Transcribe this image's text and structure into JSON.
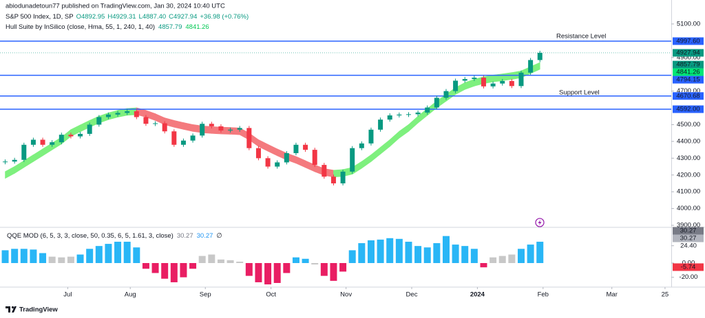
{
  "header": {
    "publisher": "abiodunadetoun77 published on TradingView.com, Jan 30, 2024 10:40 UTC",
    "symbol": "S&P 500 Index, 1D, SP",
    "ohlc": [
      "O4892.95",
      "H4929.31",
      "L4887.40",
      "C4927.94",
      "+36.98 (+0.76%)"
    ],
    "indicator": "Hull Suite by InSilico (close, Hma, 55, 1, 240, 1, 40)",
    "indicator_values": [
      "4857.79",
      "4841.26"
    ]
  },
  "footer": {
    "brand": "TradingView"
  },
  "chart_data": [
    {
      "type": "candlestick",
      "grid": false,
      "up_color": "#089981",
      "down_color": "#f23645",
      "x": [
        0,
        3,
        6,
        9,
        12,
        15,
        18,
        21,
        24,
        27,
        30,
        33,
        36,
        39,
        42,
        45,
        48,
        51,
        54,
        57,
        60,
        63,
        66,
        69,
        72,
        75,
        78,
        81,
        84,
        87,
        90,
        93,
        96,
        99,
        102,
        105,
        108,
        111,
        114,
        117,
        120,
        123,
        126,
        129,
        132,
        135,
        138,
        141,
        144,
        147,
        150,
        153,
        156,
        159,
        162,
        165,
        168,
        171
      ],
      "values": [
        4280,
        4290,
        4380,
        4410,
        4380,
        4395,
        4440,
        4430,
        4445,
        4500,
        4545,
        4560,
        4570,
        4580,
        4545,
        4505,
        4508,
        4460,
        4380,
        4405,
        4435,
        4505,
        4490,
        4465,
        4470,
        4480,
        4360,
        4300,
        4250,
        4275,
        4330,
        4380,
        4350,
        4260,
        4190,
        4150,
        4220,
        4360,
        4388,
        4470,
        4530,
        4555,
        4560,
        4562,
        4572,
        4602,
        4660,
        4700,
        4762,
        4772,
        4780,
        4728,
        4745,
        4760,
        4730,
        4810,
        4885,
        4928
      ],
      "hull": {
        "rise_color": "#7ef07e",
        "fall_color": "#f47a7e",
        "values": [
          4200,
          4230,
          4265,
          4300,
          4335,
          4370,
          4405,
          4450,
          4478,
          4505,
          4530,
          4550,
          4565,
          4576,
          4580,
          4565,
          4545,
          4520,
          4505,
          4492,
          4480,
          4472,
          4468,
          4465,
          4463,
          4460,
          4430,
          4390,
          4362,
          4335,
          4310,
          4290,
          4265,
          4240,
          4218,
          4208,
          4212,
          4225,
          4260,
          4300,
          4345,
          4390,
          4440,
          4480,
          4530,
          4575,
          4620,
          4660,
          4700,
          4730,
          4750,
          4765,
          4775,
          4782,
          4790,
          4800,
          4825,
          4850
        ]
      },
      "xlim": [
        -1,
        213
      ],
      "xticks": [
        {
          "value": 20,
          "label": "Jul"
        },
        {
          "value": 40,
          "label": "Aug"
        },
        {
          "value": 64,
          "label": "Sep"
        },
        {
          "value": 85,
          "label": "Oct"
        },
        {
          "value": 109,
          "label": "Nov"
        },
        {
          "value": 130,
          "label": "Dec"
        },
        {
          "value": 151,
          "label": "2024"
        },
        {
          "value": 172,
          "label": "Feb"
        },
        {
          "value": 194,
          "label": "Mar"
        },
        {
          "value": 211,
          "label": "25"
        }
      ],
      "ylim": [
        3892,
        5161
      ],
      "yticks": [
        {
          "value": 5100,
          "label": "5100.00"
        },
        {
          "value": 4900,
          "label": "4900.00"
        },
        {
          "value": 4700,
          "label": "4700.00"
        },
        {
          "value": 4500,
          "label": "4500.00"
        },
        {
          "value": 4400,
          "label": "4400.00"
        },
        {
          "value": 4300,
          "label": "4300.00"
        },
        {
          "value": 4200,
          "label": "4200.00"
        },
        {
          "value": 4100,
          "label": "4100.00"
        },
        {
          "value": 4000,
          "label": "4000.00"
        },
        {
          "value": 3900,
          "label": "3900.00"
        }
      ],
      "level_color": "#2962ff",
      "levels": [
        {
          "value": 4997.6,
          "label": "4997.60"
        },
        {
          "value": 4794.15,
          "label": "4794.15"
        },
        {
          "value": 4670.68,
          "label": "4670.68"
        },
        {
          "value": 4592,
          "label": "4592.00"
        }
      ],
      "price_labels": [
        {
          "value": 4927.94,
          "label": "4927.94",
          "color": "#089981"
        },
        {
          "value": 4857.79,
          "label": "4857.79",
          "color": "#089981"
        },
        {
          "value": 4841.26,
          "label": "4841.26",
          "color": "#00e676"
        }
      ],
      "annotation_color": "#f23645",
      "annotations": [
        "Resistance Level",
        "Support Level"
      ]
    },
    {
      "type": "histogram",
      "title": "QQE MOD (6, 5, 3, 3, close, 50, 0.35, 6, 5, 1.61, 3, close)",
      "legend_values": [
        "30.27",
        "30.27",
        "∅"
      ],
      "values": [
        18,
        20,
        20,
        19,
        14,
        9,
        8,
        9,
        12,
        20,
        24,
        27,
        30,
        30,
        22,
        -8,
        -14,
        -22,
        -27,
        -20,
        -8,
        10,
        12,
        5,
        4,
        2,
        -18,
        -27,
        -30,
        -28,
        -14,
        8,
        6,
        -2,
        -18,
        -25,
        -12,
        18,
        28,
        32,
        33,
        35,
        34,
        30,
        24,
        22,
        28,
        38,
        26,
        24,
        20,
        -6,
        8,
        10,
        12,
        20,
        26,
        30
      ],
      "colors": [
        "#29b6f6",
        "#29b6f6",
        "#29b6f6",
        "#29b6f6",
        "#29b6f6",
        "#c8c8c8",
        "#c8c8c8",
        "#c8c8c8",
        "#29b6f6",
        "#29b6f6",
        "#29b6f6",
        "#29b6f6",
        "#29b6f6",
        "#29b6f6",
        "#29b6f6",
        "#e91e63",
        "#e91e63",
        "#e91e63",
        "#e91e63",
        "#e91e63",
        "#e91e63",
        "#c8c8c8",
        "#c8c8c8",
        "#c8c8c8",
        "#c8c8c8",
        "#c8c8c8",
        "#e91e63",
        "#e91e63",
        "#e91e63",
        "#e91e63",
        "#e91e63",
        "#29b6f6",
        "#29b6f6",
        "#c8c8c8",
        "#e91e63",
        "#e91e63",
        "#e91e63",
        "#29b6f6",
        "#29b6f6",
        "#29b6f6",
        "#29b6f6",
        "#29b6f6",
        "#29b6f6",
        "#29b6f6",
        "#29b6f6",
        "#29b6f6",
        "#29b6f6",
        "#29b6f6",
        "#29b6f6",
        "#29b6f6",
        "#29b6f6",
        "#e91e63",
        "#c8c8c8",
        "#c8c8c8",
        "#c8c8c8",
        "#29b6f6",
        "#29b6f6",
        "#29b6f6"
      ],
      "ylim": [
        -33.8,
        48.3
      ],
      "yticks": [
        {
          "value": 24.4,
          "label": "24.40"
        },
        {
          "value": 0,
          "label": "0.00"
        },
        {
          "value": -20,
          "label": "-20.00"
        }
      ],
      "side_labels": [
        {
          "value": 30.27,
          "label": "30.27",
          "color": "#787b86"
        },
        {
          "value": 30.27,
          "label": "30.27",
          "color": "#b2b5be"
        },
        {
          "value": -5.74,
          "label": "-5.74",
          "color": "#f23645"
        }
      ]
    }
  ]
}
